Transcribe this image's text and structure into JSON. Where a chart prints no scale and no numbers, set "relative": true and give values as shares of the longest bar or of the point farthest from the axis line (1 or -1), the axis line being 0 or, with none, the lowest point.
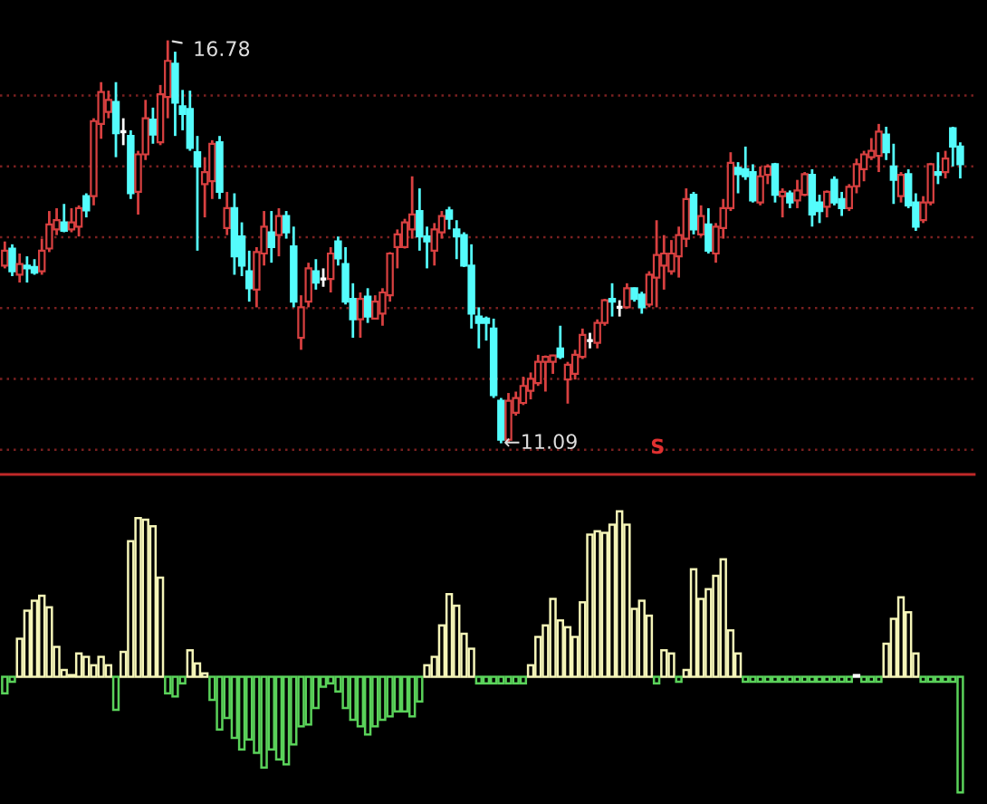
{
  "chart_data": [
    {
      "type": "candlestick",
      "categories": [
        null,
        null,
        null,
        null,
        null,
        null,
        null,
        null,
        null,
        null,
        null,
        null,
        null,
        null,
        null,
        null,
        null,
        null,
        null,
        null,
        null,
        null,
        null,
        null,
        null,
        null,
        null,
        null,
        null,
        null,
        null,
        null,
        null,
        null,
        null,
        null,
        null,
        null,
        null,
        null,
        null,
        null,
        null,
        null,
        null,
        null,
        null,
        null,
        null,
        null,
        null,
        null,
        null,
        null,
        null,
        null,
        null,
        null,
        null,
        null,
        null,
        null,
        null,
        null,
        null,
        null,
        null,
        null,
        null,
        null,
        null,
        null,
        null,
        null,
        null,
        null,
        null,
        null,
        null,
        null,
        null,
        null,
        null,
        null,
        null,
        null,
        null,
        null,
        null,
        null,
        null,
        null,
        null,
        null,
        null,
        null,
        null,
        null,
        null,
        null,
        null,
        null,
        null,
        null,
        null,
        null,
        null,
        null,
        null,
        null,
        null,
        null,
        null,
        null,
        null,
        null,
        null,
        null,
        null,
        null,
        null,
        null,
        null,
        null,
        null,
        null,
        null,
        null,
        null,
        null
      ],
      "ohlc": [
        [
          13.6,
          13.94,
          13.56,
          13.81
        ],
        [
          13.84,
          13.9,
          13.45,
          13.52
        ],
        [
          13.47,
          13.77,
          13.36,
          13.62
        ],
        [
          13.6,
          13.73,
          13.36,
          13.56
        ],
        [
          13.58,
          13.69,
          13.47,
          13.5
        ],
        [
          13.52,
          13.98,
          13.47,
          13.81
        ],
        [
          13.84,
          14.37,
          13.79,
          14.18
        ],
        [
          14.11,
          14.41,
          14.03,
          14.24
        ],
        [
          14.21,
          14.47,
          14.07,
          14.09
        ],
        [
          14.11,
          14.41,
          14.07,
          14.21
        ],
        [
          14.15,
          14.45,
          14.01,
          14.41
        ],
        [
          14.58,
          14.62,
          14.28,
          14.38
        ],
        [
          14.58,
          15.68,
          14.45,
          15.64
        ],
        [
          15.6,
          16.19,
          15.39,
          16.05
        ],
        [
          15.77,
          16.07,
          15.68,
          15.94
        ],
        [
          15.91,
          16.19,
          15.13,
          15.47
        ],
        [
          15.49,
          15.68,
          15.3,
          15.49
        ],
        [
          15.43,
          15.51,
          14.54,
          14.62
        ],
        [
          14.64,
          15.22,
          14.32,
          15.17
        ],
        [
          15.17,
          15.94,
          15.09,
          15.68
        ],
        [
          15.66,
          15.83,
          15.32,
          15.45
        ],
        [
          15.34,
          16.15,
          15.3,
          16.02
        ],
        [
          15.98,
          16.78,
          15.68,
          16.49
        ],
        [
          16.45,
          16.62,
          15.43,
          15.9
        ],
        [
          15.85,
          16.08,
          15.51,
          15.74
        ],
        [
          15.81,
          16.07,
          15.22,
          15.26
        ],
        [
          15.2,
          15.43,
          13.81,
          15.0
        ],
        [
          14.75,
          15.13,
          14.28,
          14.92
        ],
        [
          14.79,
          15.37,
          14.54,
          15.32
        ],
        [
          15.34,
          15.43,
          14.54,
          14.64
        ],
        [
          14.13,
          14.64,
          14.03,
          14.41
        ],
        [
          14.41,
          14.62,
          13.47,
          13.73
        ],
        [
          14.01,
          14.21,
          13.45,
          13.6
        ],
        [
          13.52,
          13.81,
          13.09,
          13.28
        ],
        [
          13.26,
          13.86,
          13.01,
          13.79
        ],
        [
          13.77,
          14.37,
          13.6,
          14.15
        ],
        [
          14.07,
          14.37,
          13.64,
          13.86
        ],
        [
          14.03,
          14.41,
          13.73,
          14.3
        ],
        [
          14.3,
          14.37,
          13.98,
          14.07
        ],
        [
          13.87,
          14.15,
          13.01,
          13.09
        ],
        [
          12.58,
          13.18,
          12.41,
          13.01
        ],
        [
          13.09,
          13.64,
          13.01,
          13.56
        ],
        [
          13.52,
          13.69,
          13.26,
          13.36
        ],
        [
          13.41,
          13.56,
          13.3,
          13.41
        ],
        [
          13.41,
          13.86,
          13.22,
          13.77
        ],
        [
          13.94,
          14.01,
          13.6,
          13.7
        ],
        [
          13.62,
          13.86,
          13.05,
          13.09
        ],
        [
          13.13,
          13.35,
          12.58,
          12.84
        ],
        [
          12.84,
          13.22,
          12.58,
          13.13
        ],
        [
          13.16,
          13.28,
          12.79,
          12.88
        ],
        [
          12.85,
          13.18,
          12.84,
          13.09
        ],
        [
          12.92,
          13.28,
          12.75,
          13.22
        ],
        [
          13.18,
          13.79,
          13.09,
          13.77
        ],
        [
          13.86,
          14.11,
          13.56,
          14.04
        ],
        [
          13.86,
          14.26,
          13.84,
          14.21
        ],
        [
          14.11,
          14.86,
          13.98,
          14.32
        ],
        [
          14.37,
          14.69,
          13.81,
          14.01
        ],
        [
          14.01,
          14.15,
          13.56,
          13.94
        ],
        [
          13.81,
          14.2,
          13.6,
          14.11
        ],
        [
          14.07,
          14.37,
          13.98,
          14.3
        ],
        [
          14.38,
          14.43,
          14.11,
          14.26
        ],
        [
          14.11,
          14.24,
          13.69,
          14.01
        ],
        [
          14.03,
          14.07,
          13.58,
          13.6
        ],
        [
          13.6,
          13.9,
          12.71,
          12.92
        ],
        [
          12.88,
          13.01,
          12.43,
          12.79
        ],
        [
          12.85,
          12.88,
          12.54,
          12.79
        ],
        [
          12.71,
          12.85,
          11.73,
          11.77
        ],
        [
          11.69,
          11.73,
          11.09,
          11.14
        ],
        [
          11.14,
          11.8,
          11.1,
          11.69
        ],
        [
          11.52,
          11.82,
          11.48,
          11.73
        ],
        [
          11.66,
          12.03,
          11.63,
          11.9
        ],
        [
          11.83,
          12.09,
          11.71,
          12.0
        ],
        [
          11.94,
          12.34,
          11.9,
          12.24
        ],
        [
          12.24,
          12.33,
          11.82,
          12.31
        ],
        [
          12.24,
          12.34,
          12.07,
          12.33
        ],
        [
          12.43,
          12.75,
          12.28,
          12.31
        ],
        [
          11.99,
          12.24,
          11.65,
          12.2
        ],
        [
          12.07,
          12.41,
          11.99,
          12.34
        ],
        [
          12.31,
          12.71,
          12.28,
          12.62
        ],
        [
          12.54,
          12.65,
          12.43,
          12.54
        ],
        [
          12.51,
          12.84,
          12.43,
          12.79
        ],
        [
          12.79,
          13.13,
          12.75,
          13.11
        ],
        [
          13.13,
          13.35,
          12.88,
          13.09
        ],
        [
          13.01,
          13.11,
          12.88,
          13.01
        ],
        [
          13.01,
          13.35,
          12.99,
          13.28
        ],
        [
          13.28,
          13.29,
          13.09,
          13.13
        ],
        [
          13.19,
          13.23,
          12.92,
          13.01
        ],
        [
          13.05,
          13.52,
          13.01,
          13.47
        ],
        [
          13.43,
          14.24,
          13.01,
          13.75
        ],
        [
          13.6,
          14.03,
          13.26,
          13.77
        ],
        [
          13.52,
          13.96,
          13.47,
          13.77
        ],
        [
          13.73,
          14.15,
          13.43,
          14.03
        ],
        [
          13.98,
          14.69,
          13.86,
          14.54
        ],
        [
          14.6,
          14.64,
          14.04,
          14.11
        ],
        [
          14.04,
          14.45,
          14.01,
          14.3
        ],
        [
          14.18,
          14.41,
          13.77,
          13.81
        ],
        [
          13.77,
          14.2,
          13.64,
          14.15
        ],
        [
          14.13,
          14.54,
          13.98,
          14.41
        ],
        [
          14.41,
          15.2,
          14.37,
          15.05
        ],
        [
          14.98,
          15.06,
          14.62,
          14.89
        ],
        [
          14.96,
          15.28,
          14.81,
          14.86
        ],
        [
          14.92,
          15.03,
          14.49,
          14.52
        ],
        [
          14.49,
          15.0,
          14.45,
          14.86
        ],
        [
          14.88,
          15.03,
          14.75,
          15.0
        ],
        [
          15.03,
          15.05,
          14.49,
          14.6
        ],
        [
          14.58,
          14.69,
          14.28,
          14.64
        ],
        [
          14.62,
          14.66,
          14.41,
          14.49
        ],
        [
          14.52,
          14.81,
          14.41,
          14.66
        ],
        [
          14.6,
          14.92,
          14.58,
          14.89
        ],
        [
          14.88,
          14.96,
          14.15,
          14.32
        ],
        [
          14.49,
          14.6,
          14.2,
          14.37
        ],
        [
          14.43,
          14.66,
          14.28,
          14.64
        ],
        [
          14.81,
          14.86,
          14.45,
          14.49
        ],
        [
          14.54,
          14.64,
          14.3,
          14.41
        ],
        [
          14.41,
          14.75,
          14.37,
          14.71
        ],
        [
          14.72,
          15.11,
          14.62,
          15.03
        ],
        [
          14.96,
          15.22,
          14.79,
          15.17
        ],
        [
          15.13,
          15.4,
          15.09,
          15.22
        ],
        [
          15.15,
          15.6,
          14.92,
          15.49
        ],
        [
          15.45,
          15.56,
          15.09,
          15.2
        ],
        [
          15.0,
          15.32,
          14.47,
          14.81
        ],
        [
          14.58,
          14.92,
          14.49,
          14.88
        ],
        [
          14.89,
          14.96,
          14.41,
          14.45
        ],
        [
          14.49,
          14.62,
          14.09,
          14.15
        ],
        [
          14.24,
          14.58,
          14.2,
          14.49
        ],
        [
          14.49,
          15.05,
          14.45,
          15.03
        ],
        [
          14.92,
          15.2,
          14.75,
          14.88
        ],
        [
          14.92,
          15.22,
          14.83,
          15.11
        ],
        [
          15.54,
          15.56,
          15.0,
          15.28
        ],
        [
          15.28,
          15.34,
          14.83,
          15.03
        ]
      ],
      "colors": [
        "#d84040",
        "#54fcfc",
        "#d84040",
        "#54fcfc",
        "#54fcfc",
        "#d84040",
        "#d84040",
        "#d84040",
        "#54fcfc",
        "#d84040",
        "#d84040",
        "#54fcfc",
        "#d84040",
        "#d84040",
        "#d84040",
        "#54fcfc",
        "#ffffff",
        "#54fcfc",
        "#d84040",
        "#d84040",
        "#54fcfc",
        "#d84040",
        "#d84040",
        "#54fcfc",
        "#54fcfc",
        "#54fcfc",
        "#54fcfc",
        "#d84040",
        "#d84040",
        "#54fcfc",
        "#d84040",
        "#54fcfc",
        "#54fcfc",
        "#54fcfc",
        "#d84040",
        "#d84040",
        "#54fcfc",
        "#d84040",
        "#54fcfc",
        "#54fcfc",
        "#d84040",
        "#d84040",
        "#54fcfc",
        "#ffffff",
        "#d84040",
        "#54fcfc",
        "#54fcfc",
        "#54fcfc",
        "#d84040",
        "#54fcfc",
        "#d84040",
        "#d84040",
        "#d84040",
        "#d84040",
        "#d84040",
        "#d84040",
        "#54fcfc",
        "#54fcfc",
        "#d84040",
        "#d84040",
        "#54fcfc",
        "#54fcfc",
        "#54fcfc",
        "#54fcfc",
        "#54fcfc",
        "#54fcfc",
        "#54fcfc",
        "#54fcfc",
        "#d84040",
        "#d84040",
        "#d84040",
        "#d84040",
        "#d84040",
        "#d84040",
        "#d84040",
        "#54fcfc",
        "#d84040",
        "#d84040",
        "#d84040",
        "#ffffff",
        "#d84040",
        "#d84040",
        "#54fcfc",
        "#ffffff",
        "#d84040",
        "#54fcfc",
        "#54fcfc",
        "#d84040",
        "#d84040",
        "#d84040",
        "#d84040",
        "#d84040",
        "#d84040",
        "#54fcfc",
        "#d84040",
        "#54fcfc",
        "#d84040",
        "#d84040",
        "#d84040",
        "#54fcfc",
        "#54fcfc",
        "#54fcfc",
        "#d84040",
        "#d84040",
        "#54fcfc",
        "#d84040",
        "#54fcfc",
        "#d84040",
        "#d84040",
        "#54fcfc",
        "#54fcfc",
        "#d84040",
        "#54fcfc",
        "#54fcfc",
        "#d84040",
        "#d84040",
        "#d84040",
        "#d84040",
        "#d84040",
        "#54fcfc",
        "#54fcfc",
        "#d84040",
        "#54fcfc",
        "#54fcfc",
        "#d84040",
        "#d84040",
        "#54fcfc",
        "#d84040",
        "#54fcfc",
        "#54fcfc"
      ],
      "ylim": [
        10.65,
        17.35
      ],
      "yticks": [
        {
          "value": 11,
          "label": null
        },
        {
          "value": 12,
          "label": null
        },
        {
          "value": 13,
          "label": null
        },
        {
          "value": 14,
          "label": null
        },
        {
          "value": 15,
          "label": null
        },
        {
          "value": 16,
          "label": null
        }
      ],
      "grid": "y",
      "annotations": [
        "16.78",
        "←11.09",
        "S"
      ]
    },
    {
      "type": "bar",
      "relative": true,
      "categories": [
        null,
        null,
        null,
        null,
        null,
        null,
        null,
        null,
        null,
        null,
        null,
        null,
        null,
        null,
        null,
        null,
        null,
        null,
        null,
        null,
        null,
        null,
        null,
        null,
        null,
        null,
        null,
        null,
        null,
        null,
        null,
        null,
        null,
        null,
        null,
        null,
        null,
        null,
        null,
        null,
        null,
        null,
        null,
        null,
        null,
        null,
        null,
        null,
        null,
        null,
        null,
        null,
        null,
        null,
        null,
        null,
        null,
        null,
        null,
        null,
        null,
        null,
        null,
        null,
        null,
        null,
        null,
        null,
        null,
        null,
        null,
        null,
        null,
        null,
        null,
        null,
        null,
        null,
        null,
        null,
        null,
        null,
        null,
        null,
        null,
        null,
        null,
        null,
        null,
        null,
        null,
        null,
        null,
        null,
        null,
        null,
        null,
        null,
        null,
        null,
        null,
        null,
        null,
        null,
        null,
        null,
        null,
        null,
        null,
        null,
        null,
        null,
        null,
        null,
        null,
        null,
        null,
        null,
        null,
        null,
        null,
        null,
        null,
        null,
        null,
        null,
        null,
        null,
        null,
        null
      ],
      "values": [
        -0.1,
        -0.03,
        0.23,
        0.4,
        0.46,
        0.49,
        0.42,
        0.18,
        0.04,
        0.01,
        0.14,
        0.12,
        0.07,
        0.12,
        0.07,
        -0.2,
        0.15,
        0.82,
        0.96,
        0.95,
        0.91,
        0.6,
        -0.1,
        -0.12,
        -0.04,
        0.16,
        0.08,
        0.02,
        -0.14,
        -0.32,
        -0.25,
        -0.37,
        -0.44,
        -0.38,
        -0.46,
        -0.55,
        -0.44,
        -0.5,
        -0.53,
        -0.41,
        -0.3,
        -0.29,
        -0.19,
        -0.06,
        -0.04,
        -0.09,
        -0.19,
        -0.26,
        -0.3,
        -0.35,
        -0.3,
        -0.26,
        -0.24,
        -0.21,
        -0.21,
        -0.24,
        -0.15,
        0.07,
        0.12,
        0.31,
        0.5,
        0.43,
        0.26,
        0.17,
        -0.04,
        -0.04,
        -0.04,
        -0.04,
        -0.04,
        -0.04,
        -0.04,
        0.07,
        0.24,
        0.31,
        0.47,
        0.34,
        0.3,
        0.24,
        0.45,
        0.86,
        0.88,
        0.87,
        0.92,
        1,
        0.92,
        0.41,
        0.46,
        0.37,
        -0.04,
        0.16,
        0.14,
        -0.03,
        0.04,
        0.65,
        0.47,
        0.53,
        0.61,
        0.71,
        0.28,
        0.14,
        -0.03,
        -0.03,
        -0.03,
        -0.03,
        -0.03,
        -0.03,
        -0.03,
        -0.03,
        -0.03,
        -0.03,
        -0.03,
        -0.03,
        -0.03,
        -0.03,
        -0.03,
        0.01,
        -0.03,
        -0.03,
        -0.03,
        0.2,
        0.35,
        0.48,
        0.39,
        0.14,
        -0.03,
        -0.03,
        -0.03,
        -0.03,
        -0.03,
        -0.7
      ],
      "colors": [
        "#5ad25a",
        "#5ad25a",
        "#f5f5b8",
        "#f5f5b8",
        "#f5f5b8",
        "#f5f5b8",
        "#f5f5b8",
        "#f5f5b8",
        "#f5f5b8",
        "#f5f5b8",
        "#f5f5b8",
        "#f5f5b8",
        "#f5f5b8",
        "#f5f5b8",
        "#f5f5b8",
        "#5ad25a",
        "#f5f5b8",
        "#f5f5b8",
        "#f5f5b8",
        "#f5f5b8",
        "#f5f5b8",
        "#f5f5b8",
        "#5ad25a",
        "#5ad25a",
        "#5ad25a",
        "#f5f5b8",
        "#f5f5b8",
        "#f5f5b8",
        "#5ad25a",
        "#5ad25a",
        "#5ad25a",
        "#5ad25a",
        "#5ad25a",
        "#5ad25a",
        "#5ad25a",
        "#5ad25a",
        "#5ad25a",
        "#5ad25a",
        "#5ad25a",
        "#5ad25a",
        "#5ad25a",
        "#5ad25a",
        "#5ad25a",
        "#5ad25a",
        "#5ad25a",
        "#5ad25a",
        "#5ad25a",
        "#5ad25a",
        "#5ad25a",
        "#5ad25a",
        "#5ad25a",
        "#5ad25a",
        "#5ad25a",
        "#5ad25a",
        "#5ad25a",
        "#5ad25a",
        "#5ad25a",
        "#f5f5b8",
        "#f5f5b8",
        "#f5f5b8",
        "#f5f5b8",
        "#f5f5b8",
        "#f5f5b8",
        "#f5f5b8",
        "#5ad25a",
        "#5ad25a",
        "#5ad25a",
        "#5ad25a",
        "#5ad25a",
        "#5ad25a",
        "#5ad25a",
        "#f5f5b8",
        "#f5f5b8",
        "#f5f5b8",
        "#f5f5b8",
        "#f5f5b8",
        "#f5f5b8",
        "#f5f5b8",
        "#f5f5b8",
        "#f5f5b8",
        "#f5f5b8",
        "#f5f5b8",
        "#f5f5b8",
        "#f5f5b8",
        "#f5f5b8",
        "#f5f5b8",
        "#f5f5b8",
        "#f5f5b8",
        "#5ad25a",
        "#f5f5b8",
        "#f5f5b8",
        "#5ad25a",
        "#f5f5b8",
        "#f5f5b8",
        "#f5f5b8",
        "#f5f5b8",
        "#f5f5b8",
        "#f5f5b8",
        "#f5f5b8",
        "#f5f5b8",
        "#5ad25a",
        "#5ad25a",
        "#5ad25a",
        "#5ad25a",
        "#5ad25a",
        "#5ad25a",
        "#5ad25a",
        "#5ad25a",
        "#5ad25a",
        "#5ad25a",
        "#5ad25a",
        "#5ad25a",
        "#5ad25a",
        "#5ad25a",
        "#5ad25a",
        "#ffffff",
        "#5ad25a",
        "#5ad25a",
        "#5ad25a",
        "#f5f5b8",
        "#f5f5b8",
        "#f5f5b8",
        "#f5f5b8",
        "#f5f5b8",
        "#5ad25a",
        "#5ad25a",
        "#5ad25a",
        "#5ad25a",
        "#5ad25a",
        "#5ad25a"
      ]
    }
  ]
}
